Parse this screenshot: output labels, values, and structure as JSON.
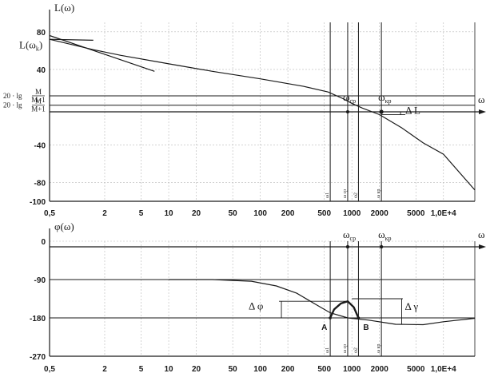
{
  "chart_data": [
    {
      "type": "line",
      "ylabel": "L(ω)",
      "xlabel": "ω",
      "x_scale": "log",
      "xlim": [
        0.5,
        22000
      ],
      "ylim": [
        -100,
        90
      ],
      "x_ticks": [
        {
          "value": 0.5,
          "label": "0,5"
        },
        {
          "value": 2,
          "label": "2"
        },
        {
          "value": 5,
          "label": "5"
        },
        {
          "value": 10,
          "label": "10"
        },
        {
          "value": 20,
          "label": "20"
        },
        {
          "value": 50,
          "label": "50"
        },
        {
          "value": 100,
          "label": "100"
        },
        {
          "value": 200,
          "label": "200"
        },
        {
          "value": 500,
          "label": "500"
        },
        {
          "value": 1000,
          "label": "1000"
        },
        {
          "value": 2000,
          "label": "2000"
        },
        {
          "value": 5000,
          "label": "5000"
        },
        {
          "value": 10000,
          "label": "1,0E+4"
        }
      ],
      "y_ticks": [
        {
          "value": 80,
          "label": "80"
        },
        {
          "value": 40,
          "label": "40"
        },
        {
          "value": -40,
          "label": "-40"
        },
        {
          "value": -80,
          "label": "-80"
        },
        {
          "value": -100,
          "label": "-100"
        }
      ],
      "y_special_labels": {
        "lk": {
          "value": 66,
          "main": "L(ω",
          "sub": "k",
          "close": ")"
        },
        "m_minus": {
          "value": 12,
          "prefix": "20 · lg",
          "num": "M",
          "den": "M−1"
        },
        "m_plus": {
          "value": 2,
          "prefix": "20 · lg",
          "num": "M",
          "den": "M+1"
        }
      },
      "series": [
        {
          "points": [
            [
              0.5,
              72
            ],
            [
              1.5,
              61
            ],
            [
              3,
              55
            ],
            [
              10,
              46
            ],
            [
              30,
              38
            ],
            [
              100,
              30
            ],
            [
              300,
              22
            ],
            [
              550,
              16
            ],
            [
              800,
              9
            ],
            [
              1000,
              4
            ],
            [
              1300,
              -1
            ],
            [
              2000,
              -8
            ],
            [
              3500,
              -22
            ],
            [
              6000,
              -38
            ],
            [
              10000,
              -50
            ],
            [
              22000,
              -88
            ]
          ]
        },
        {
          "points": [
            [
              0.5,
              76
            ],
            [
              7,
              38
            ]
          ]
        },
        {
          "points": [
            [
              0.5,
              72
            ],
            [
              1.5,
              71
            ]
          ]
        }
      ],
      "h_lines": [
        12,
        2
      ],
      "v_lines": [
        {
          "x": 580,
          "label": "ω1"
        },
        {
          "x": 900,
          "label": "ω cp"
        },
        {
          "x": 1180,
          "label": "ω2"
        },
        {
          "x": 2100,
          "label": "ω кр"
        }
      ],
      "annotations": {
        "w_cp": {
          "main": "ω",
          "sub": "cp"
        },
        "w_kr": {
          "main": "ω",
          "sub": "кр"
        },
        "delta_L": "Δ L",
        "axis_omega": "ω"
      }
    },
    {
      "type": "line",
      "ylabel": "φ(ω)",
      "xlabel": "ω",
      "x_scale": "log",
      "xlim": [
        0.5,
        22000
      ],
      "ylim": [
        -270,
        0
      ],
      "x_ticks": [
        {
          "value": 0.5,
          "label": "0,5"
        },
        {
          "value": 2,
          "label": "2"
        },
        {
          "value": 5,
          "label": "5"
        },
        {
          "value": 10,
          "label": "10"
        },
        {
          "value": 20,
          "label": "20"
        },
        {
          "value": 50,
          "label": "50"
        },
        {
          "value": 100,
          "label": "100"
        },
        {
          "value": 200,
          "label": "200"
        },
        {
          "value": 500,
          "label": "500"
        },
        {
          "value": 1000,
          "label": "1000"
        },
        {
          "value": 2000,
          "label": "2000"
        },
        {
          "value": 5000,
          "label": "5000"
        },
        {
          "value": 10000,
          "label": "1,0E+4"
        }
      ],
      "y_ticks": [
        {
          "value": 0,
          "label": "0"
        },
        {
          "value": -90,
          "label": "-90"
        },
        {
          "value": -180,
          "label": "-180"
        },
        {
          "value": -270,
          "label": "-270"
        }
      ],
      "series": [
        {
          "points": [
            [
              10,
              -90
            ],
            [
              30,
              -90
            ],
            [
              80,
              -94
            ],
            [
              150,
              -105
            ],
            [
              250,
              -122
            ],
            [
              400,
              -148
            ],
            [
              580,
              -168
            ],
            [
              900,
              -180
            ],
            [
              1500,
              -185
            ],
            [
              3000,
              -195
            ],
            [
              6000,
              -196
            ],
            [
              10000,
              -189
            ],
            [
              22000,
              -181
            ]
          ]
        },
        {
          "points": [
            [
              580,
              -180
            ],
            [
              640,
              -160
            ],
            [
              760,
              -146
            ],
            [
              900,
              -141
            ],
            [
              1050,
              -155
            ],
            [
              1180,
              -180
            ]
          ]
        }
      ],
      "h_lines": [
        -90,
        -180
      ],
      "v_lines": [
        {
          "x": 580,
          "label": "ω1"
        },
        {
          "x": 900,
          "label": "ω cp"
        },
        {
          "x": 1180,
          "label": "ω2"
        },
        {
          "x": 2100,
          "label": "ω кр"
        }
      ],
      "points": [
        {
          "x": 580,
          "y": -180,
          "label": "A"
        },
        {
          "x": 1180,
          "y": -180,
          "label": "B"
        }
      ],
      "annotations": {
        "w_cp": {
          "main": "ω",
          "sub": "cp"
        },
        "w_kr": {
          "main": "ω",
          "sub": "кр"
        },
        "delta_phi": "Δ φ",
        "delta_gamma": "Δ γ",
        "axis_omega": "ω"
      }
    }
  ]
}
